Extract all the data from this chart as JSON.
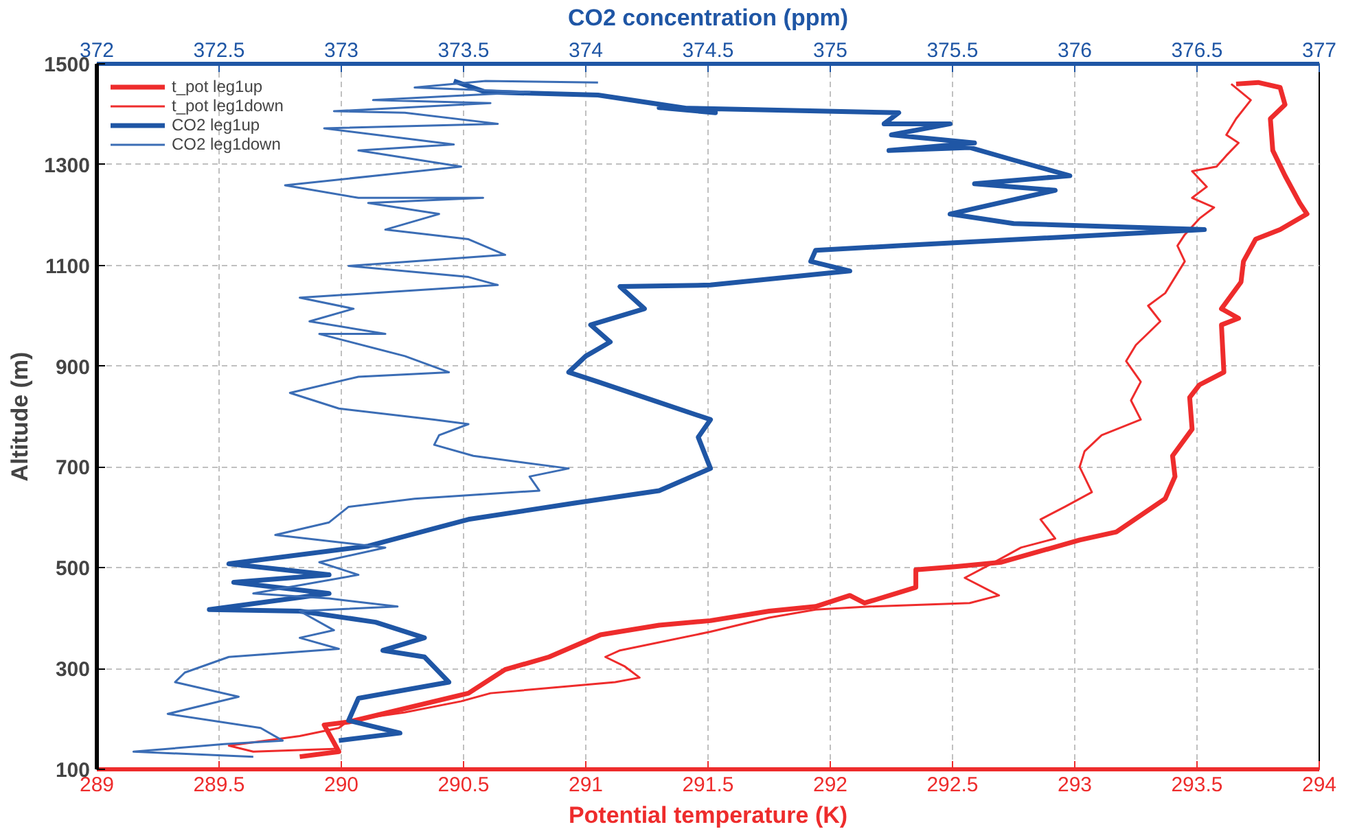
{
  "chart_data": {
    "type": "line",
    "xlabel": "Potential temperature (K)",
    "x2label": "CO2 concentration (ppm)",
    "ylabel": "Altitude (m)",
    "xlim": [
      289,
      294
    ],
    "xticks": [
      289,
      289.5,
      290,
      290.5,
      291,
      291.5,
      292,
      292.5,
      293,
      293.5,
      294
    ],
    "x2lim": [
      372,
      377
    ],
    "x2ticks": [
      372,
      372.5,
      373,
      373.5,
      374,
      374.5,
      375,
      375.5,
      376,
      376.5,
      377
    ],
    "ylim": [
      100,
      1500
    ],
    "yticks": [
      100,
      300,
      500,
      700,
      900,
      1100,
      1300,
      1500
    ],
    "grid": true,
    "legend": "top left",
    "marker": "none",
    "line_style": "solid",
    "series": [
      {
        "name": "t_pot leg1up",
        "color": "#ee2c2c",
        "x": [
          289.83,
          289.99,
          289.93,
          290.03,
          290.52,
          290.67,
          290.85,
          291.06,
          291.3,
          291.51,
          291.75,
          291.94,
          292.08,
          292.14,
          292.35,
          292.35,
          292.51,
          292.7,
          293.02,
          293.17,
          293.37,
          293.41,
          293.4,
          293.48,
          293.47,
          293.51,
          293.61,
          293.6,
          293.67,
          293.6,
          293.68,
          293.69,
          293.74,
          293.84,
          293.95,
          293.92,
          293.86,
          293.81,
          293.8,
          293.86,
          293.84,
          293.75,
          293.66
        ],
        "values": [
          125,
          135,
          188,
          194,
          251,
          298,
          323,
          367,
          386,
          395,
          414,
          423,
          445,
          430,
          461,
          496,
          502,
          511,
          555,
          571,
          637,
          681,
          722,
          775,
          838,
          863,
          888,
          982,
          995,
          1014,
          1067,
          1108,
          1152,
          1171,
          1202,
          1224,
          1278,
          1328,
          1391,
          1419,
          1453,
          1463,
          1460
        ]
      },
      {
        "name": "t_pot leg1down",
        "color": "#ee2c2c",
        "x": [
          293.64,
          293.72,
          293.66,
          293.62,
          293.67,
          293.62,
          293.58,
          293.48,
          293.54,
          293.48,
          293.57,
          293.51,
          293.45,
          293.42,
          293.45,
          293.37,
          293.3,
          293.35,
          293.25,
          293.21,
          293.27,
          293.23,
          293.27,
          293.11,
          293.04,
          293.02,
          293.07,
          292.96,
          292.86,
          292.92,
          292.78,
          292.66,
          292.55,
          292.69,
          292.57,
          292.16,
          291.94,
          291.75,
          291.51,
          291.14,
          291.08,
          291.16,
          291.22,
          291.12,
          290.61,
          290.49,
          290.26,
          290.03,
          289.99,
          289.83,
          289.54,
          289.64,
          289.99
        ],
        "values": [
          1460,
          1428,
          1391,
          1359,
          1343,
          1318,
          1296,
          1287,
          1256,
          1234,
          1215,
          1193,
          1161,
          1139,
          1108,
          1045,
          1020,
          989,
          942,
          910,
          869,
          832,
          794,
          763,
          731,
          700,
          650,
          621,
          596,
          558,
          540,
          508,
          480,
          445,
          430,
          423,
          417,
          401,
          373,
          336,
          323,
          304,
          282,
          273,
          251,
          235,
          213,
          197,
          182,
          166,
          147,
          135,
          141
        ]
      },
      {
        "name": "CO2 leg1up",
        "color": "#1f56a5",
        "axis": "x2",
        "x": [
          372.99,
          373.24,
          373.03,
          373.07,
          373.44,
          373.34,
          373.17,
          373.34,
          373.14,
          372.83,
          372.46,
          372.95,
          372.56,
          372.95,
          372.54,
          373.11,
          373.52,
          373.95,
          374.3,
          374.51,
          374.46,
          374.51,
          374.24,
          374.05,
          373.93,
          374.0,
          374.1,
          374.02,
          374.24,
          374.14,
          374.51,
          375.08,
          374.92,
          374.94,
          375.28,
          376.53,
          375.75,
          375.49,
          375.92,
          375.59,
          375.98,
          375.75,
          375.57,
          375.24,
          375.59,
          375.25,
          375.49,
          375.22,
          375.28,
          374.3,
          374.53,
          374.05,
          373.59,
          373.46
        ],
        "values": [
          157,
          172,
          197,
          241,
          273,
          323,
          336,
          361,
          392,
          414,
          417,
          449,
          471,
          486,
          508,
          543,
          596,
          628,
          653,
          697,
          759,
          794,
          838,
          869,
          888,
          920,
          948,
          982,
          1014,
          1058,
          1061,
          1089,
          1108,
          1130,
          1139,
          1171,
          1183,
          1202,
          1249,
          1262,
          1278,
          1309,
          1334,
          1328,
          1343,
          1359,
          1381,
          1381,
          1403,
          1413,
          1403,
          1438,
          1444,
          1466
        ]
      },
      {
        "name": "CO2 leg1down",
        "color": "#3b6db5",
        "axis": "x2",
        "x": [
          374.05,
          373.59,
          373.3,
          373.77,
          373.13,
          373.61,
          372.97,
          373.26,
          373.64,
          372.93,
          373.46,
          373.07,
          373.49,
          372.77,
          373.07,
          373.58,
          373.11,
          373.4,
          373.18,
          373.52,
          373.67,
          373.03,
          373.52,
          373.64,
          372.83,
          373.05,
          372.87,
          373.18,
          372.91,
          373.26,
          373.44,
          373.07,
          372.79,
          372.99,
          373.38,
          373.52,
          373.4,
          373.38,
          373.54,
          373.93,
          373.77,
          373.81,
          373.3,
          373.03,
          372.95,
          372.73,
          373.18,
          372.91,
          373.07,
          372.64,
          372.95,
          373.23,
          372.83,
          372.97,
          372.83,
          372.99,
          372.54,
          372.36,
          372.32,
          372.58,
          372.29,
          372.67,
          372.76,
          372.52,
          372.15,
          372.64
        ],
        "values": [
          1463,
          1466,
          1453,
          1444,
          1428,
          1422,
          1406,
          1403,
          1381,
          1372,
          1340,
          1328,
          1296,
          1259,
          1234,
          1234,
          1224,
          1202,
          1171,
          1152,
          1121,
          1099,
          1077,
          1061,
          1036,
          1014,
          989,
          964,
          964,
          920,
          888,
          879,
          847,
          816,
          794,
          785,
          763,
          744,
          722,
          697,
          681,
          653,
          637,
          621,
          590,
          565,
          540,
          511,
          486,
          449,
          439,
          423,
          414,
          376,
          361,
          339,
          323,
          292,
          273,
          244,
          210,
          182,
          157,
          150,
          135,
          125
        ]
      }
    ]
  }
}
